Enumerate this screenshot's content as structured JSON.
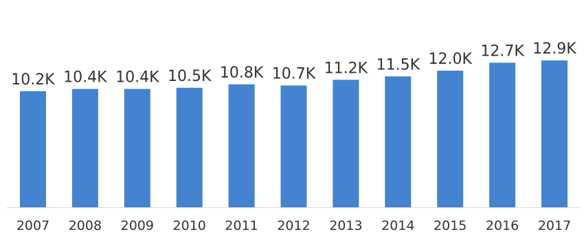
{
  "chart_data": {
    "type": "bar",
    "categories": [
      "2007",
      "2008",
      "2009",
      "2010",
      "2011",
      "2012",
      "2013",
      "2014",
      "2015",
      "2016",
      "2017"
    ],
    "values": [
      10.2,
      10.4,
      10.4,
      10.5,
      10.8,
      10.7,
      11.2,
      11.5,
      12.0,
      12.7,
      12.9
    ],
    "data_labels": [
      "10.2K",
      "10.4K",
      "10.4K",
      "10.5K",
      "10.8K",
      "10.7K",
      "11.2K",
      "11.5K",
      "12.0K",
      "12.7K",
      "12.9K"
    ],
    "unit": "K",
    "ylim": [
      0,
      13
    ],
    "grid": false,
    "legend": "none",
    "bar_color": "#4383cf",
    "axis_color": "#d9d9d9"
  }
}
